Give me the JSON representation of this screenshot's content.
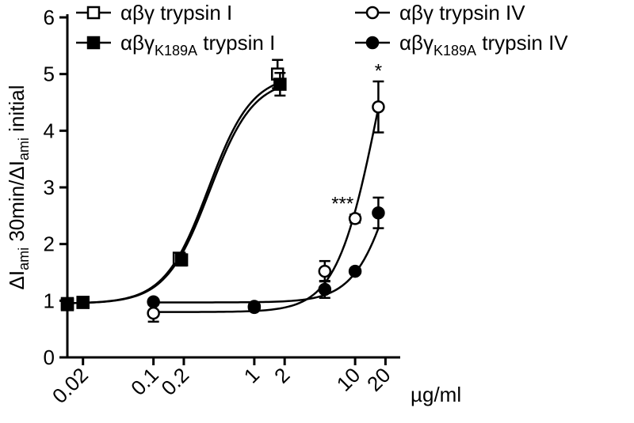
{
  "chart_data": {
    "type": "scatter",
    "xscale": "log",
    "xlim": [
      0.014,
      28
    ],
    "ylim": [
      0,
      6
    ],
    "yticks": [
      0,
      1,
      2,
      3,
      4,
      5,
      6
    ],
    "xticks": [
      0.02,
      0.1,
      0.2,
      1,
      2,
      10,
      20
    ],
    "xtick_labels": [
      "0.02",
      "0.1",
      "0.2",
      "1",
      "2",
      "10",
      "20"
    ],
    "ylabel_parts": [
      "ΔI",
      "ami",
      " 30min/ΔI",
      "ami",
      " initial"
    ],
    "x_unit": "µg/ml",
    "legend_position": "top",
    "series": [
      {
        "name_parts": [
          "αβγ trypsin I",
          ""
        ],
        "marker": "square-open",
        "fit": {
          "bottom": 0.95,
          "top": 5.0,
          "ec50": 0.35,
          "hill": 2.0
        },
        "points": [
          {
            "x": 0.014,
            "y": 0.95,
            "err": 0.04
          },
          {
            "x": 0.02,
            "y": 0.97,
            "err": 0.03
          },
          {
            "x": 0.18,
            "y": 1.75,
            "err": 0.08
          },
          {
            "x": 1.7,
            "y": 5.0,
            "err": 0.25
          }
        ]
      },
      {
        "name_parts": [
          "αβγ",
          "K189A",
          " trypsin  I"
        ],
        "marker": "square-filled",
        "fit": {
          "bottom": 0.95,
          "top": 4.92,
          "ec50": 0.36,
          "hill": 2.0
        },
        "points": [
          {
            "x": 0.014,
            "y": 0.93,
            "err": 0.03
          },
          {
            "x": 0.02,
            "y": 0.97,
            "err": 0.03
          },
          {
            "x": 0.19,
            "y": 1.72,
            "err": 0.1
          },
          {
            "x": 1.8,
            "y": 4.82,
            "err": 0.2
          }
        ]
      },
      {
        "name_parts": [
          "αβγ trypsin  IV",
          ""
        ],
        "marker": "circle-open",
        "fit": {
          "bottom": 0.8,
          "top": 8.0,
          "ec50": 17,
          "hill": 2.1
        },
        "points": [
          {
            "x": 0.1,
            "y": 0.78,
            "err": 0.15
          },
          {
            "x": 1,
            "y": 0.88,
            "err": 0.05
          },
          {
            "x": 5,
            "y": 1.52,
            "err": 0.18
          },
          {
            "x": 10,
            "y": 2.45,
            "err": 0.07
          },
          {
            "x": 17,
            "y": 4.42,
            "err": 0.45
          }
        ]
      },
      {
        "name_parts": [
          "αβγ",
          "K189A",
          " trypsin  IV"
        ],
        "marker": "circle-filled",
        "fit": {
          "bottom": 0.97,
          "top": 6.0,
          "ec50": 28,
          "hill": 2.1
        },
        "points": [
          {
            "x": 0.1,
            "y": 0.98,
            "err": 0.03
          },
          {
            "x": 1,
            "y": 0.9,
            "err": 0.04
          },
          {
            "x": 5,
            "y": 1.2,
            "err": 0.15
          },
          {
            "x": 10,
            "y": 1.52,
            "err": 0.04
          },
          {
            "x": 17,
            "y": 2.55,
            "err": 0.27
          }
        ]
      }
    ],
    "annotations": [
      {
        "text": "***",
        "x": 7.5,
        "y": 2.6
      },
      {
        "text": "*",
        "x": 17,
        "y": 4.95
      }
    ]
  }
}
